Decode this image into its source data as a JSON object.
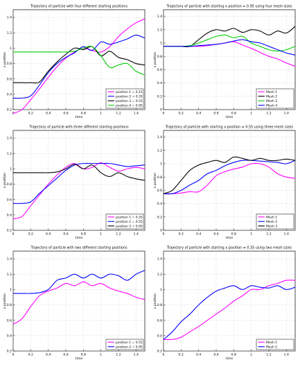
{
  "chart_data": [
    {
      "type": "line",
      "title": "Trajectory of particle with four different starting positions",
      "xlabel": "time",
      "ylabel": "x position",
      "xlim": [
        0,
        1.5
      ],
      "ylim": [
        0.2,
        1.5
      ],
      "xticks": [
        "0",
        "0.2",
        "0.4",
        "0.6",
        "0.8",
        "1",
        "1.2",
        "1.4"
      ],
      "yticks": [
        "0.2",
        "0.4",
        "0.6",
        "0.8",
        "1",
        "1.2",
        "1.4"
      ],
      "grid": true,
      "legend_position": "bottom-right",
      "x": [
        0,
        0.1,
        0.2,
        0.3,
        0.4,
        0.5,
        0.6,
        0.7,
        0.8,
        0.9,
        1.0,
        1.1,
        1.2,
        1.3,
        1.4,
        1.5
      ],
      "series": [
        {
          "name": "position 1 = 0.15",
          "color": "#ff00ff",
          "values": [
            0.15,
            0.2,
            0.33,
            0.47,
            0.62,
            0.76,
            0.87,
            0.95,
            1.0,
            0.97,
            0.95,
            1.02,
            1.15,
            1.25,
            1.33,
            1.38
          ]
        },
        {
          "name": "position 2 = 0.35",
          "color": "#0000ff",
          "values": [
            0.35,
            0.35,
            0.38,
            0.52,
            0.68,
            0.8,
            0.88,
            0.94,
            1.02,
            0.97,
            1.08,
            1.05,
            1.08,
            1.12,
            1.17,
            1.13
          ]
        },
        {
          "name": "position 3 = 0.55",
          "color": "#000000",
          "values": [
            0.55,
            0.55,
            0.55,
            0.56,
            0.7,
            0.82,
            0.92,
            1.0,
            0.98,
            1.02,
            0.9,
            0.96,
            0.88,
            0.85,
            0.8,
            0.78
          ]
        },
        {
          "name": "position 4 = 0.95",
          "color": "#00cc00",
          "values": [
            0.95,
            0.95,
            0.95,
            0.95,
            0.95,
            0.95,
            0.95,
            0.96,
            1.0,
            1.02,
            0.9,
            0.75,
            0.78,
            0.8,
            0.7,
            0.65
          ]
        }
      ]
    },
    {
      "type": "line",
      "title": "Trajectory of particle with starting x position = 0.95 using four mesh sizes",
      "xlabel": "time",
      "ylabel": "x position",
      "xlim": [
        0,
        1.5
      ],
      "ylim": [
        0,
        1.5
      ],
      "xticks": [
        "0",
        "0.2",
        "0.4",
        "0.6",
        "0.8",
        "1",
        "1.2",
        "1.4"
      ],
      "yticks": [
        "0",
        "0.2",
        "0.4",
        "0.6",
        "0.8",
        "1",
        "1.2",
        "1.4"
      ],
      "grid": true,
      "legend_position": "bottom-right",
      "x": [
        0,
        0.1,
        0.2,
        0.3,
        0.4,
        0.5,
        0.6,
        0.7,
        0.8,
        0.9,
        1.0,
        1.1,
        1.2,
        1.3,
        1.4,
        1.5
      ],
      "series": [
        {
          "name": "Mesh 1",
          "color": "#ff00ff",
          "values": [
            0.95,
            0.95,
            0.95,
            0.95,
            0.95,
            0.96,
            0.98,
            1.0,
            1.02,
            0.97,
            0.92,
            0.86,
            0.8,
            0.76,
            0.7,
            0.65
          ]
        },
        {
          "name": "Mesh 2",
          "color": "#000000",
          "values": [
            0.95,
            0.95,
            0.95,
            0.95,
            1.05,
            1.15,
            1.2,
            1.18,
            1.22,
            1.16,
            1.2,
            1.18,
            1.12,
            1.18,
            1.15,
            1.25
          ]
        },
        {
          "name": "Mesh 3",
          "color": "#00cc00",
          "values": [
            0.95,
            0.95,
            0.95,
            0.96,
            1.0,
            1.05,
            1.1,
            1.12,
            1.08,
            1.1,
            1.0,
            0.95,
            0.9,
            0.88,
            0.9,
            0.95
          ]
        },
        {
          "name": "Mesh 4",
          "color": "#0000ff",
          "values": [
            0.95,
            0.95,
            0.95,
            0.95,
            0.96,
            0.97,
            0.98,
            1.0,
            1.03,
            1.05,
            1.02,
            1.0,
            0.95,
            0.9,
            0.85,
            0.82
          ]
        }
      ]
    },
    {
      "type": "line",
      "title": "Trajectory of particle with three different starting positions",
      "xlabel": "time",
      "ylabel": "x position",
      "xlim": [
        0,
        1.5
      ],
      "ylim": [
        0.2,
        1.5
      ],
      "xticks": [
        "0",
        "0.2",
        "0.4",
        "0.6",
        "0.8",
        "1",
        "1.2",
        "1.4"
      ],
      "yticks": [
        "0.2",
        "0.4",
        "0.6",
        "0.8",
        "1",
        "1.2",
        "1.4"
      ],
      "grid": true,
      "legend_position": "bottom-right",
      "x": [
        0,
        0.1,
        0.2,
        0.3,
        0.4,
        0.5,
        0.6,
        0.7,
        0.8,
        0.9,
        1.0,
        1.1,
        1.2,
        1.3,
        1.4,
        1.5
      ],
      "series": [
        {
          "name": "position 1 = 0.35",
          "color": "#ff00ff",
          "values": [
            0.35,
            0.38,
            0.52,
            0.66,
            0.8,
            0.92,
            1.02,
            1.07,
            1.0,
            1.02,
            1.08,
            1.02,
            0.97,
            1.0,
            1.02,
            1.0
          ]
        },
        {
          "name": "position 2 = 0.55",
          "color": "#0000ff",
          "values": [
            0.55,
            0.55,
            0.57,
            0.68,
            0.78,
            0.88,
            0.98,
            1.05,
            1.07,
            1.07,
            1.07,
            1.07,
            1.05,
            1.03,
            1.04,
            1.05
          ]
        },
        {
          "name": "position 3 = 0.95",
          "color": "#000000",
          "values": [
            0.95,
            0.95,
            0.95,
            0.95,
            0.95,
            0.96,
            1.0,
            1.06,
            1.0,
            1.05,
            0.95,
            0.9,
            0.95,
            0.9,
            0.87,
            0.85
          ]
        }
      ]
    },
    {
      "type": "line",
      "title": "Trajectory of particle with starting x position = 0.55 using three mesh sizes",
      "xlabel": "time",
      "ylabel": "x position",
      "xlim": [
        0,
        1.5
      ],
      "ylim": [
        0,
        1.5
      ],
      "xticks": [
        "0",
        "0.2",
        "0.4",
        "0.6",
        "0.8",
        "1",
        "1.2",
        "1.4"
      ],
      "yticks": [
        "0",
        "0.2",
        "0.4",
        "0.6",
        "0.8",
        "1",
        "1.2",
        "1.4"
      ],
      "grid": true,
      "legend_position": "bottom-right",
      "x": [
        0,
        0.1,
        0.2,
        0.3,
        0.4,
        0.5,
        0.6,
        0.7,
        0.8,
        0.9,
        1.0,
        1.1,
        1.2,
        1.3,
        1.4,
        1.5
      ],
      "series": [
        {
          "name": "Mesh 1",
          "color": "#ff00ff",
          "values": [
            0.55,
            0.55,
            0.56,
            0.58,
            0.58,
            0.68,
            0.82,
            0.88,
            0.92,
            0.95,
            1.0,
            1.0,
            0.95,
            0.85,
            0.8,
            0.78
          ]
        },
        {
          "name": "Mesh 2",
          "color": "#0000ff",
          "values": [
            0.55,
            0.55,
            0.6,
            0.68,
            0.75,
            0.85,
            0.9,
            0.97,
            1.02,
            1.05,
            1.05,
            1.04,
            1.03,
            1.02,
            1.0,
            1.05
          ]
        },
        {
          "name": "Mesh 3",
          "color": "#000000",
          "values": [
            0.55,
            0.6,
            0.75,
            0.9,
            0.98,
            1.02,
            1.05,
            1.02,
            1.1,
            1.08,
            1.05,
            1.08,
            1.05,
            1.05,
            1.07,
            1.05
          ]
        }
      ]
    },
    {
      "type": "line",
      "title": "Trajectory of particle with two different starting positions",
      "xlabel": "time",
      "ylabel": "x position",
      "xlim": [
        0,
        1.5
      ],
      "ylim": [
        0.2,
        1.5
      ],
      "xticks": [
        "0",
        "0.2",
        "0.4",
        "0.6",
        "0.8",
        "1",
        "1.2",
        "1.4"
      ],
      "yticks": [
        "0.2",
        "0.4",
        "0.6",
        "0.8",
        "1",
        "1.2",
        "1.4"
      ],
      "grid": true,
      "legend_position": "bottom-right",
      "x": [
        0,
        0.1,
        0.2,
        0.3,
        0.4,
        0.5,
        0.6,
        0.7,
        0.8,
        0.9,
        1.0,
        1.1,
        1.2,
        1.3,
        1.4,
        1.5
      ],
      "series": [
        {
          "name": "position 1 = 0.55",
          "color": "#ff00ff",
          "values": [
            0.55,
            0.62,
            0.78,
            0.92,
            0.98,
            1.02,
            1.08,
            1.05,
            1.1,
            1.05,
            1.08,
            1.02,
            0.98,
            0.95,
            0.9,
            0.87
          ]
        },
        {
          "name": "position 2 = 0.95",
          "color": "#0000ff",
          "values": [
            0.95,
            0.95,
            0.95,
            0.96,
            1.0,
            1.12,
            1.15,
            1.2,
            1.15,
            1.2,
            1.15,
            1.2,
            1.18,
            1.12,
            1.2,
            1.25
          ]
        }
      ]
    },
    {
      "type": "line",
      "title": "Trajectory of particle with starting x position = 0.35 using two mesh sizes",
      "xlabel": "time",
      "ylabel": "x position",
      "xlim": [
        0,
        1.5
      ],
      "ylim": [
        0.2,
        1.5
      ],
      "xticks": [
        "0",
        "0.2",
        "0.4",
        "0.6",
        "0.8",
        "1",
        "1.2",
        "1.4"
      ],
      "yticks": [
        "0.2",
        "0.4",
        "0.6",
        "0.8",
        "1",
        "1.2",
        "1.4"
      ],
      "grid": true,
      "legend_position": "bottom-right",
      "x": [
        0,
        0.1,
        0.2,
        0.3,
        0.4,
        0.5,
        0.6,
        0.7,
        0.8,
        0.9,
        1.0,
        1.1,
        1.2,
        1.3,
        1.4,
        1.5
      ],
      "series": [
        {
          "name": "Mesh 1",
          "color": "#ff00ff",
          "values": [
            0.35,
            0.35,
            0.38,
            0.45,
            0.52,
            0.6,
            0.68,
            0.76,
            0.85,
            0.92,
            1.0,
            1.0,
            1.05,
            1.08,
            1.12,
            1.12
          ]
        },
        {
          "name": "Mesh 2",
          "color": "#0000ff",
          "values": [
            0.35,
            0.45,
            0.58,
            0.68,
            0.8,
            0.9,
            0.98,
            1.02,
            1.05,
            1.0,
            1.05,
            1.03,
            1.02,
            1.05,
            1.0,
            1.03
          ]
        }
      ]
    }
  ]
}
